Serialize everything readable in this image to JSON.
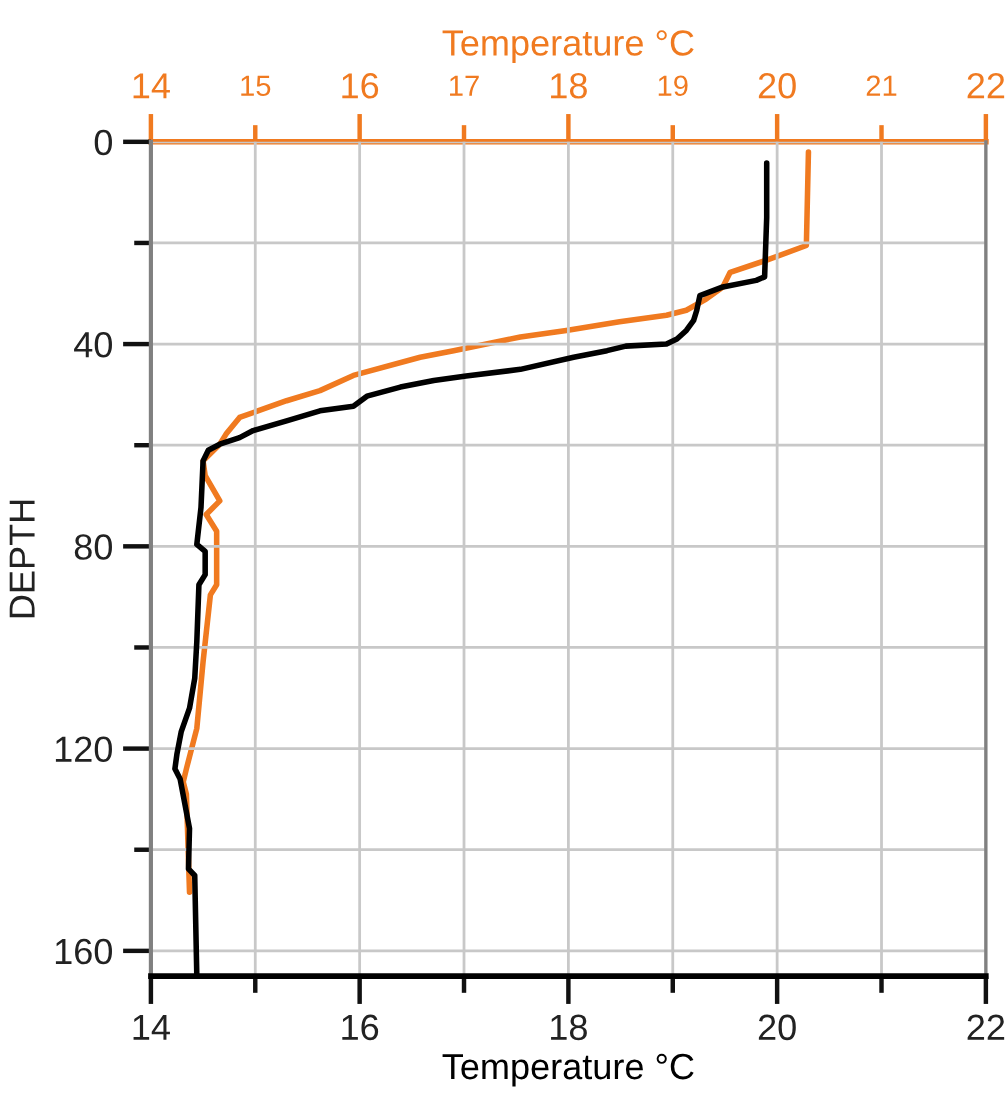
{
  "chart_data": {
    "type": "line",
    "xlabel": "Temperature °C",
    "x2label": "Temperature °C",
    "ylabel": "DEPTH",
    "xlim": [
      14,
      22
    ],
    "xticks": [
      14,
      {
        "value": 15,
        "label": null
      },
      16,
      {
        "value": 17,
        "label": null
      },
      18,
      {
        "value": 19,
        "label": null
      },
      20,
      {
        "value": 21,
        "label": null
      },
      22
    ],
    "x2lim": [
      14,
      22
    ],
    "x2ticks": [
      14,
      15,
      16,
      17,
      18,
      19,
      20,
      21,
      22
    ],
    "ylim": [
      165,
      0
    ],
    "yticks": [
      0,
      {
        "value": 20,
        "label": null
      },
      40,
      {
        "value": 60,
        "label": null
      },
      80,
      {
        "value": 100,
        "label": null
      },
      120,
      {
        "value": 140,
        "label": null
      },
      160
    ],
    "grid": true,
    "line_style": "solid",
    "series": [
      {
        "color": "#000000",
        "x": [
          19.9,
          19.9,
          19.88,
          19.8,
          19.48,
          19.26,
          19.23,
          19.2,
          19.13,
          19.04,
          18.94,
          18.55,
          18.37,
          18.05,
          17.54,
          17.02,
          16.71,
          16.39,
          16.07,
          15.94,
          15.62,
          15.3,
          14.98,
          14.85,
          14.66,
          14.55,
          14.5,
          14.48,
          14.44,
          14.52,
          14.52,
          14.46,
          14.44,
          14.42,
          14.37,
          14.29,
          14.25,
          14.23,
          14.28,
          14.37,
          14.36,
          14.42,
          14.44
        ],
        "values": [
          4.2,
          15.0,
          26.7,
          27.4,
          28.7,
          30.4,
          33.3,
          35.3,
          37.3,
          39.0,
          40.0,
          40.4,
          41.3,
          42.6,
          45.0,
          46.3,
          47.2,
          48.5,
          50.3,
          52.3,
          53.2,
          55.2,
          57.1,
          58.5,
          59.8,
          61.0,
          63.1,
          72.3,
          79.6,
          81.0,
          85.6,
          87.6,
          98.8,
          106.1,
          112.0,
          116.7,
          121.0,
          124.0,
          126.0,
          135.8,
          143.8,
          145.1,
          165.0
        ]
      },
      {
        "color": "#f07a20",
        "axis": "x2",
        "x": [
          20.3,
          20.28,
          19.9,
          19.55,
          19.48,
          19.32,
          19.13,
          18.94,
          18.49,
          17.98,
          17.54,
          16.9,
          16.58,
          15.94,
          15.62,
          15.3,
          14.85,
          14.72,
          14.66,
          14.5,
          14.52,
          14.66,
          14.53,
          14.63,
          14.63,
          14.57,
          14.5,
          14.44,
          14.34,
          14.31,
          14.34,
          14.37
        ],
        "values": [
          2.0,
          20.5,
          23.4,
          25.8,
          28.7,
          31.1,
          33.3,
          34.3,
          35.6,
          37.3,
          38.6,
          41.3,
          42.6,
          46.2,
          49.2,
          51.2,
          54.5,
          57.8,
          59.8,
          63.1,
          66.0,
          71.0,
          73.7,
          77.0,
          87.6,
          89.6,
          102.8,
          116.0,
          124.0,
          126.6,
          129.0,
          148.4
        ]
      }
    ]
  }
}
